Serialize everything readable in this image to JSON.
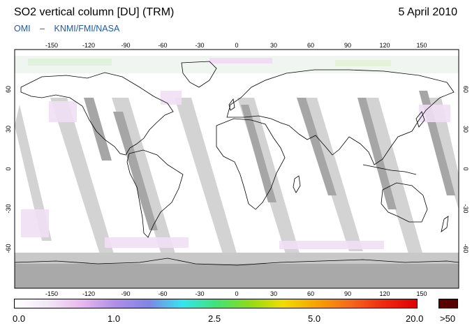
{
  "header": {
    "title": "SO2 vertical column [DU] (TRM)",
    "date": "5 April 2010",
    "credit": [
      "OMI",
      "–",
      "KNMI/FMI/NASA"
    ]
  },
  "map": {
    "lon_ticks": [
      "-150",
      "-120",
      "-90",
      "-60",
      "-30",
      "0",
      "30",
      "60",
      "90",
      "120",
      "150"
    ],
    "lat_ticks": [
      "60",
      "30",
      "0",
      "-30",
      "-60"
    ],
    "lon_range": [
      -180,
      180
    ],
    "lat_range": [
      -90,
      90
    ],
    "colors": {
      "no_data": "#a9a9a9",
      "swath_light": "#d3d3d3",
      "swath_dark": "#a6a6a6",
      "background": "#ffffff",
      "coastline": "#000000"
    }
  },
  "colorbar": {
    "labels": [
      "0.0",
      "1.0",
      "2.5",
      "5.0",
      "20.0"
    ],
    "over_label": ">50",
    "over_color": "#5a0000",
    "gradient": [
      "#ffffff",
      "#f3e6f6",
      "#e8b8ee",
      "#b08ee8",
      "#7f85e6",
      "#35e5f0",
      "#3fe37a",
      "#8fdc16",
      "#f0dd00",
      "#f6a400",
      "#f56a1a",
      "#f02a10",
      "#e00000"
    ]
  }
}
